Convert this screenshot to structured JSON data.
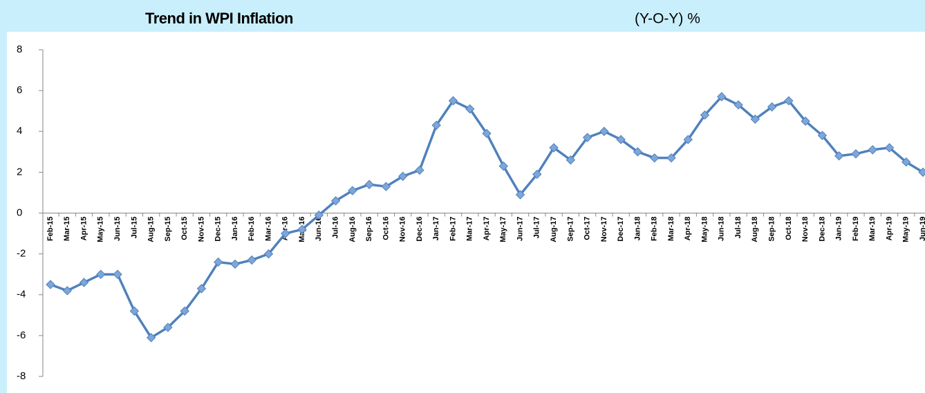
{
  "chart_data": {
    "type": "line",
    "title": "Trend in WPI Inflation",
    "subtitle": "(Y-O-Y) %",
    "categories": [
      "Feb-15",
      "Mar-15",
      "Apr-15",
      "May-15",
      "Jun-15",
      "Jul-15",
      "Aug-15",
      "Sep-15",
      "Oct-15",
      "Nov-15",
      "Dec-15",
      "Jan-16",
      "Feb-16",
      "Mar-16",
      "Apr-16",
      "May-16",
      "Jun-16",
      "Jul-16",
      "Aug-16",
      "Sep-16",
      "Oct-16",
      "Nov-16",
      "Dec-16",
      "Jan-17",
      "Feb-17",
      "Mar-17",
      "Apr-17",
      "May-17",
      "Jun-17",
      "Jul-17",
      "Aug-17",
      "Sep-17",
      "Oct-17",
      "Nov-17",
      "Dec-17",
      "Jan-18",
      "Feb-18",
      "Mar-18",
      "Apr-18",
      "May-18",
      "Jun-18",
      "Jul-18",
      "Aug-18",
      "Sep-18",
      "Oct-18",
      "Nov-18",
      "Dec-18",
      "Jan-19",
      "Feb-19",
      "Mar-19",
      "Apr-19",
      "May-19",
      "Jun-19"
    ],
    "values": [
      -3.5,
      -3.8,
      -3.4,
      -3.0,
      -3.0,
      -4.8,
      -6.1,
      -5.6,
      -4.8,
      -3.7,
      -2.4,
      -2.5,
      -2.3,
      -2.0,
      -1.0,
      -0.8,
      -0.1,
      0.6,
      1.1,
      1.4,
      1.3,
      1.8,
      2.1,
      4.3,
      5.5,
      5.1,
      3.9,
      2.3,
      0.9,
      1.9,
      3.2,
      2.6,
      3.7,
      4.0,
      3.6,
      3.0,
      2.7,
      2.7,
      3.6,
      4.8,
      5.7,
      5.3,
      4.6,
      5.2,
      5.5,
      4.5,
      3.8,
      2.8,
      2.9,
      3.1,
      3.2,
      2.5,
      2.0
    ],
    "color": "#4f81bd",
    "marker_color": "#7ea6d8",
    "ylim": [
      -8,
      8
    ],
    "yticks": [
      -8,
      -6,
      -4,
      -2,
      0,
      2,
      4,
      6,
      8
    ],
    "grid": false
  }
}
